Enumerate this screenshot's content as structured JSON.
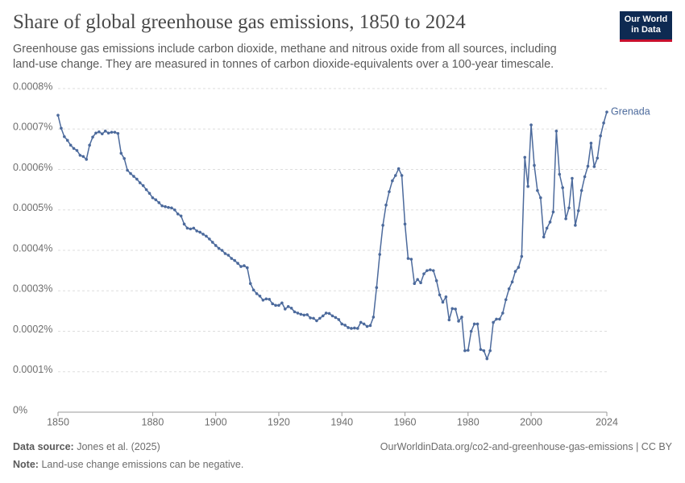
{
  "chart_data": {
    "type": "line",
    "title": "Share of global greenhouse gas emissions, 1850 to 2024",
    "subtitle": "Greenhouse gas emissions include carbon dioxide, methane and nitrous oxide from all sources, including land-use change. They are measured in tonnes of carbon dioxide-equivalents over a 100-year timescale.",
    "logo": [
      "Our World",
      "in Data"
    ],
    "source_label": "Data source:",
    "source": "Jones et al. (2025)",
    "url": "OurWorldinData.org/co2-and-greenhouse-gas-emissions | CC BY",
    "note_label": "Note:",
    "note": "Land-use change emissions can be negative.",
    "xlim": [
      1850,
      2024
    ],
    "xticks": [
      1850,
      1880,
      1900,
      1920,
      1940,
      1960,
      1980,
      2000,
      2024
    ],
    "ylim": [
      0,
      0.0008
    ],
    "yticks": [
      {
        "value": 0,
        "label": "0%"
      },
      {
        "value": 0.0001,
        "label": "0.0001%"
      },
      {
        "value": 0.0002,
        "label": "0.0002%"
      },
      {
        "value": 0.0003,
        "label": "0.0003%"
      },
      {
        "value": 0.0004,
        "label": "0.0004%"
      },
      {
        "value": 0.0005,
        "label": "0.0005%"
      },
      {
        "value": 0.0006,
        "label": "0.0006%"
      },
      {
        "value": 0.0007,
        "label": "0.0007%"
      },
      {
        "value": 0.0008,
        "label": "0.0008%"
      }
    ],
    "grid": true,
    "x": [
      1850,
      1851,
      1852,
      1853,
      1854,
      1855,
      1856,
      1857,
      1858,
      1859,
      1860,
      1861,
      1862,
      1863,
      1864,
      1865,
      1866,
      1867,
      1868,
      1869,
      1870,
      1871,
      1872,
      1873,
      1874,
      1875,
      1876,
      1877,
      1878,
      1879,
      1880,
      1881,
      1882,
      1883,
      1884,
      1885,
      1886,
      1887,
      1888,
      1889,
      1890,
      1891,
      1892,
      1893,
      1894,
      1895,
      1896,
      1897,
      1898,
      1899,
      1900,
      1901,
      1902,
      1903,
      1904,
      1905,
      1906,
      1907,
      1908,
      1909,
      1910,
      1911,
      1912,
      1913,
      1914,
      1915,
      1916,
      1917,
      1918,
      1919,
      1920,
      1921,
      1922,
      1923,
      1924,
      1925,
      1926,
      1927,
      1928,
      1929,
      1930,
      1931,
      1932,
      1933,
      1934,
      1935,
      1936,
      1937,
      1938,
      1939,
      1940,
      1941,
      1942,
      1943,
      1944,
      1945,
      1946,
      1947,
      1948,
      1949,
      1950,
      1951,
      1952,
      1953,
      1954,
      1955,
      1956,
      1957,
      1958,
      1959,
      1960,
      1961,
      1962,
      1963,
      1964,
      1965,
      1966,
      1967,
      1968,
      1969,
      1970,
      1971,
      1972,
      1973,
      1974,
      1975,
      1976,
      1977,
      1978,
      1979,
      1980,
      1981,
      1982,
      1983,
      1984,
      1985,
      1986,
      1987,
      1988,
      1989,
      1990,
      1991,
      1992,
      1993,
      1994,
      1995,
      1996,
      1997,
      1998,
      1999,
      2000,
      2001,
      2002,
      2003,
      2004,
      2005,
      2006,
      2007,
      2008,
      2009,
      2010,
      2011,
      2012,
      2013,
      2014,
      2015,
      2016,
      2017,
      2018,
      2019,
      2020,
      2021,
      2022,
      2023,
      2024
    ],
    "series": [
      {
        "name": "Grenada",
        "color": "#4c6a9c",
        "values": [
          0.000734,
          0.000702,
          0.000681,
          0.000672,
          0.00066,
          0.000652,
          0.000647,
          0.000635,
          0.000632,
          0.000625,
          0.00066,
          0.00068,
          0.00069,
          0.000693,
          0.000688,
          0.000695,
          0.00069,
          0.000692,
          0.000692,
          0.000689,
          0.00064,
          0.000627,
          0.000598,
          0.00059,
          0.000583,
          0.000576,
          0.000567,
          0.00056,
          0.00055,
          0.000541,
          0.00053,
          0.000525,
          0.000518,
          0.00051,
          0.000508,
          0.000506,
          0.000505,
          0.0005,
          0.00049,
          0.000485,
          0.000465,
          0.000455,
          0.000453,
          0.000455,
          0.000448,
          0.000445,
          0.00044,
          0.000435,
          0.000428,
          0.00042,
          0.000412,
          0.000405,
          0.0004,
          0.000392,
          0.000388,
          0.00038,
          0.000375,
          0.000368,
          0.00036,
          0.000362,
          0.000357,
          0.000318,
          0.000302,
          0.000293,
          0.000287,
          0.000277,
          0.00028,
          0.000279,
          0.000268,
          0.000264,
          0.000264,
          0.00027,
          0.000255,
          0.000261,
          0.000257,
          0.000248,
          0.000245,
          0.000242,
          0.00024,
          0.000241,
          0.000233,
          0.000232,
          0.000226,
          0.000232,
          0.000238,
          0.000245,
          0.000244,
          0.000238,
          0.000234,
          0.000229,
          0.000218,
          0.000215,
          0.000209,
          0.000207,
          0.000208,
          0.000207,
          0.000222,
          0.000218,
          0.000212,
          0.000214,
          0.000235,
          0.000308,
          0.00039,
          0.000462,
          0.000512,
          0.000545,
          0.000572,
          0.000585,
          0.000602,
          0.000585,
          0.000465,
          0.00038,
          0.000378,
          0.000318,
          0.000328,
          0.00032,
          0.000342,
          0.00035,
          0.000352,
          0.00035,
          0.000325,
          0.00029,
          0.000272,
          0.000285,
          0.000228,
          0.000256,
          0.000255,
          0.000225,
          0.000235,
          0.000152,
          0.000153,
          0.0002,
          0.000218,
          0.000218,
          0.000155,
          0.000152,
          0.000132,
          0.000152,
          0.000222,
          0.00023,
          0.00023,
          0.000245,
          0.000278,
          0.000305,
          0.000322,
          0.000348,
          0.000358,
          0.000385,
          0.00063,
          0.000558,
          0.00071,
          0.00061,
          0.000548,
          0.00053,
          0.000433,
          0.000455,
          0.00047,
          0.000495,
          0.000695,
          0.000588,
          0.000555,
          0.000478,
          0.000505,
          0.000578,
          0.000462,
          0.000498,
          0.000548,
          0.000582,
          0.000608,
          0.000665,
          0.000607,
          0.000628,
          0.000683,
          0.000715,
          0.000742
        ]
      }
    ]
  }
}
